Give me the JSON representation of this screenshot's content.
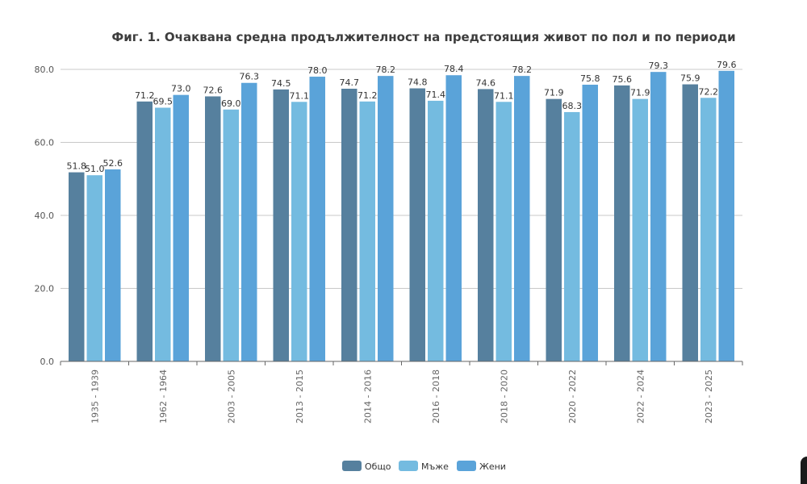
{
  "chart_data": {
    "type": "bar",
    "title": "Фиг. 1. Очаквана средна продължителност на предстоящия живот по пол и по периоди",
    "xlabel": "",
    "ylabel": "",
    "ylim": [
      0,
      80
    ],
    "yticks": [
      "0.0",
      "20.0",
      "40.0",
      "60.0",
      "80.0"
    ],
    "grid": true,
    "legend_position": "bottom",
    "categories": [
      "1935 - 1939",
      "1962 - 1964",
      "2003 - 2005",
      "2013 - 2015",
      "2014 - 2016",
      "2016 - 2018",
      "2018 - 2020",
      "2020 - 2022",
      "2022 - 2024",
      "2023 - 2025"
    ],
    "series": [
      {
        "name": "Общо",
        "color": "#56809e",
        "values": [
          51.8,
          71.2,
          72.6,
          74.5,
          74.7,
          74.8,
          74.6,
          71.9,
          75.6,
          75.9
        ],
        "labels": [
          "51.8",
          "71.2",
          "72.6",
          "74.5",
          "74.7",
          "74.8",
          "74.6",
          "71.9",
          "75.6",
          "75.9"
        ]
      },
      {
        "name": "Мъже",
        "color": "#74bbe0",
        "values": [
          51.0,
          69.5,
          69.0,
          71.1,
          71.2,
          71.4,
          71.1,
          68.3,
          71.9,
          72.2
        ],
        "labels": [
          "51.0",
          "69.5",
          "69.0",
          "71.1",
          "71.2",
          "71.4",
          "71.1",
          "68.3",
          "71.9",
          "72.2"
        ]
      },
      {
        "name": "Жени",
        "color": "#5aa3d9",
        "values": [
          52.6,
          73.0,
          76.3,
          78.0,
          78.2,
          78.4,
          78.2,
          75.8,
          79.3,
          79.6
        ],
        "labels": [
          "52.6",
          "73.0",
          "76.3",
          "78.0",
          "78.2",
          "78.4",
          "78.2",
          "75.8",
          "79.3",
          "79.6"
        ]
      }
    ]
  }
}
